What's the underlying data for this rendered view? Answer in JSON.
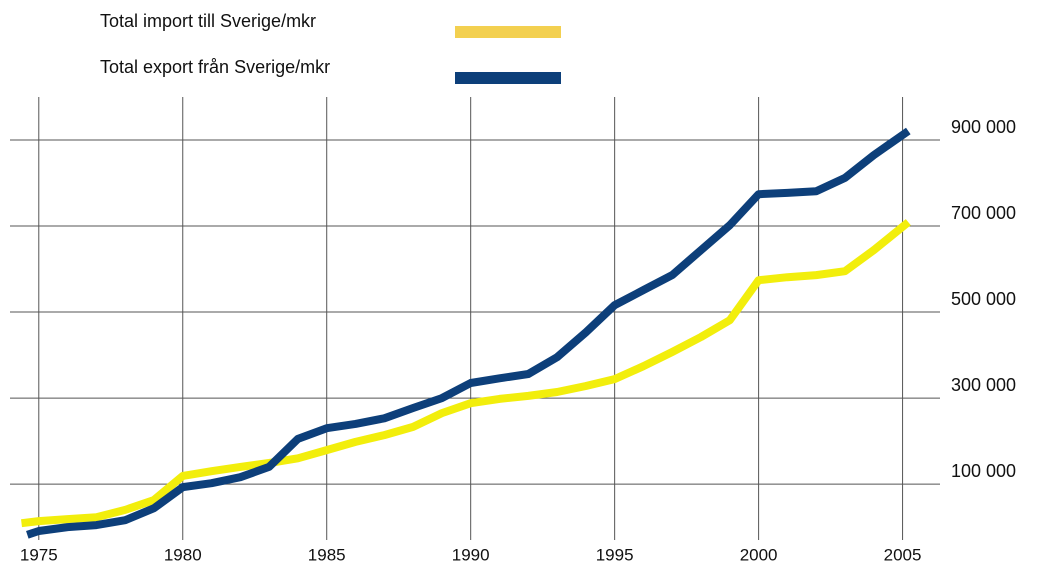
{
  "chart_data": {
    "type": "line",
    "series": [
      {
        "name": "Total import till Sverige/mkr",
        "color": "#f2ee0c",
        "legend_color": "#f3d050",
        "x": [
          1974.4,
          1975,
          1976,
          1977,
          1978,
          1979,
          1980,
          1981,
          1982,
          1983,
          1984,
          1985,
          1986,
          1987,
          1988,
          1989,
          1990,
          1991,
          1992,
          1993,
          1994,
          1995,
          1996,
          1997,
          1998,
          1999,
          2000,
          2001,
          2002,
          2003,
          2004,
          2005.2
        ],
        "values": [
          9000,
          14000,
          18600,
          23000,
          40000,
          63000,
          119000,
          130000,
          140000,
          149000,
          160000,
          179000,
          198000,
          214000,
          233000,
          265000,
          288000,
          298000,
          305000,
          314000,
          328000,
          344000,
          374000,
          407000,
          442000,
          481000,
          574000,
          581000,
          586000,
          595000,
          644000,
          709000
        ]
      },
      {
        "name": "Total export från Sverige/mkr",
        "color": "#0d3f7a",
        "legend_color": "#0d3f7a",
        "x": [
          1974.6,
          1975,
          1976,
          1977,
          1978,
          1979,
          1980,
          1981,
          1982,
          1983,
          1984,
          1985,
          1986,
          1987,
          1988,
          1989,
          1990,
          1991,
          1992,
          1993,
          1994,
          1995,
          1996,
          1997,
          1998,
          1999,
          2000,
          2001,
          2002,
          2003,
          2004,
          2005.2
        ],
        "values": [
          -18000,
          -9000,
          0,
          4600,
          16000,
          44000,
          93000,
          102000,
          116000,
          140000,
          205000,
          230000,
          240000,
          253000,
          277000,
          300000,
          335000,
          346000,
          356000,
          395000,
          453000,
          516000,
          551000,
          586000,
          644000,
          702000,
          774000,
          777000,
          781000,
          812000,
          865000,
          921000
        ]
      }
    ],
    "xlim": [
      1974,
      2006.3
    ],
    "xticks": [
      1975,
      1980,
      1985,
      1990,
      1995,
      2000,
      2005
    ],
    "ylim": [
      -30000,
      1000000
    ],
    "yticks": [
      {
        "value": 100000,
        "label": "100 000"
      },
      {
        "value": 300000,
        "label": "300 000"
      },
      {
        "value": 500000,
        "label": "500 000"
      },
      {
        "value": 700000,
        "label": "700 000"
      },
      {
        "value": 900000,
        "label": "900 000"
      }
    ],
    "grid": true
  }
}
